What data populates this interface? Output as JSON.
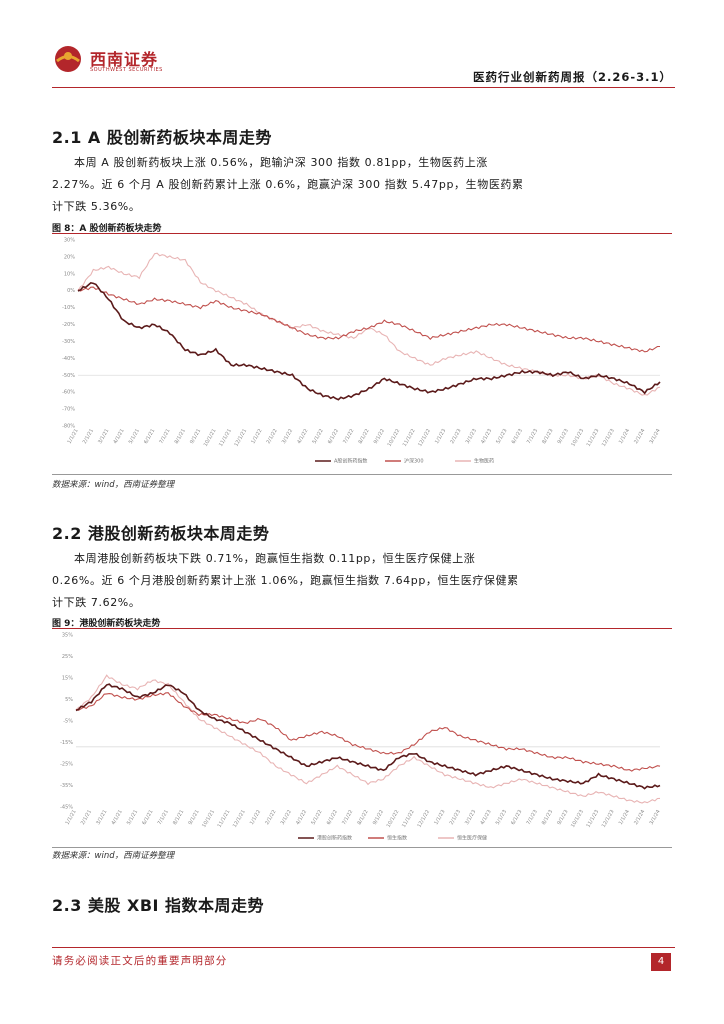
{
  "header": {
    "logo_name": "西南证券",
    "logo_sub": "SOUTHWEST SECURITIES",
    "report_title": "医药行业创新药周报（2.26-3.1）"
  },
  "sections": [
    {
      "title": "2.1 A 股创新药板块本周走势",
      "paragraph": "本周 A 股创新药板块上涨 0.56%，跑输沪深 300 指数 0.81pp，生物医药上涨\n2.27%。近 6 个月 A 股创新药累计上涨 0.6%，跑赢沪深 300 指数 5.47pp，生物医药累\n计下跌 5.36%。",
      "figure_title": "图 8：A 股创新药板块走势",
      "source": "数据来源：wind，西南证券整理"
    },
    {
      "title": "2.2 港股创新药板块本周走势",
      "paragraph": "本周港股创新药板块下跌 0.71%，跑赢恒生指数 0.11pp，恒生医疗保健上涨\n0.26%。近 6 个月港股创新药累计上涨 1.06%，跑赢恒生指数 7.64pp，恒生医疗保健累\n计下跌 7.62%。",
      "figure_title": "图 9：港股创新药板块走势",
      "source": "数据来源：wind，西南证券整理"
    },
    {
      "title": "2.3 美股 XBI 指数本周走势"
    }
  ],
  "footer": {
    "disclaimer": "请务必阅读正文后的重要声明部分",
    "page_number": "4"
  },
  "colors": {
    "brand": "#b3262b",
    "series_dark": "#5b1a1a",
    "series_mid": "#c0504d",
    "series_light": "#e8b4b4"
  },
  "chart_data": [
    {
      "type": "line",
      "ylim": [
        -80,
        30
      ],
      "yticks": [
        "30%",
        "20%",
        "10%",
        "0%",
        "-10%",
        "-20%",
        "-30%",
        "-40%",
        "-50%",
        "-60%",
        "-70%",
        "-80%"
      ],
      "xticks": [
        "1/1/21",
        "2/1/21",
        "3/1/21",
        "4/1/21",
        "5/1/21",
        "6/1/21",
        "7/1/21",
        "8/1/21",
        "9/1/21",
        "10/1/21",
        "11/1/21",
        "12/1/21",
        "1/1/22",
        "2/1/22",
        "3/1/22",
        "4/1/22",
        "5/1/22",
        "6/1/22",
        "7/1/22",
        "8/1/22",
        "9/1/22",
        "10/1/22",
        "11/1/22",
        "12/1/22",
        "1/1/23",
        "2/1/23",
        "3/1/23",
        "4/1/23",
        "5/1/23",
        "6/1/23",
        "7/1/23",
        "8/1/23",
        "9/1/23",
        "10/1/23",
        "11/1/23",
        "12/1/23",
        "1/1/24",
        "2/1/24",
        "3/1/24"
      ],
      "series": [
        {
          "name": "A股创新药指数",
          "color": "#5b1a1a",
          "values": [
            0,
            5,
            -5,
            -18,
            -22,
            -20,
            -25,
            -35,
            -38,
            -35,
            -44,
            -44,
            -46,
            -48,
            -50,
            -58,
            -62,
            -64,
            -62,
            -58,
            -52,
            -55,
            -58,
            -60,
            -58,
            -55,
            -52,
            -52,
            -50,
            -48,
            -48,
            -50,
            -48,
            -52,
            -50,
            -52,
            -55,
            -60,
            -54
          ]
        },
        {
          "name": "沪深300",
          "color": "#c0504d",
          "values": [
            0,
            2,
            -2,
            -5,
            -8,
            -5,
            -6,
            -8,
            -10,
            -6,
            -10,
            -12,
            -14,
            -18,
            -22,
            -26,
            -28,
            -28,
            -24,
            -22,
            -18,
            -20,
            -24,
            -28,
            -26,
            -24,
            -22,
            -20,
            -20,
            -22,
            -24,
            -26,
            -28,
            -28,
            -30,
            -32,
            -34,
            -36,
            -33
          ]
        },
        {
          "name": "生物医药",
          "color": "#e8b4b4",
          "values": [
            0,
            12,
            14,
            10,
            8,
            22,
            20,
            18,
            5,
            0,
            -4,
            -8,
            -14,
            -18,
            -22,
            -20,
            -24,
            -26,
            -28,
            -22,
            -26,
            -36,
            -40,
            -44,
            -40,
            -38,
            -36,
            -40,
            -44,
            -46,
            -48,
            -50,
            -50,
            -52,
            -50,
            -55,
            -58,
            -62,
            -57
          ]
        }
      ]
    },
    {
      "type": "line",
      "ylim": [
        -0.45,
        0.35
      ],
      "yticks": [
        "35%",
        "25%",
        "15%",
        "5%",
        "-5%",
        "-15%",
        "-25%",
        "-35%",
        "-45%"
      ],
      "xticks": [
        "1/1/21",
        "2/1/21",
        "3/1/21",
        "4/1/21",
        "5/1/21",
        "6/1/21",
        "7/1/21",
        "8/1/21",
        "9/1/21",
        "10/1/21",
        "11/1/21",
        "12/1/21",
        "1/1/22",
        "2/1/22",
        "3/1/22",
        "4/1/22",
        "5/1/22",
        "6/1/22",
        "7/1/22",
        "8/1/22",
        "9/1/22",
        "10/1/22",
        "11/1/22",
        "12/1/22",
        "1/1/23",
        "2/1/23",
        "3/1/23",
        "4/1/23",
        "5/1/23",
        "6/1/23",
        "7/1/23",
        "8/1/23",
        "9/1/23",
        "10/1/23",
        "11/1/23",
        "12/1/23",
        "1/1/24",
        "2/1/24",
        "3/1/24"
      ],
      "series": [
        {
          "name": "港股创新药指数",
          "color": "#5b1a1a",
          "values": [
            0,
            0.04,
            0.12,
            0.1,
            0.06,
            0.08,
            0.12,
            0.08,
            0.0,
            -0.04,
            -0.06,
            -0.1,
            -0.14,
            -0.18,
            -0.22,
            -0.26,
            -0.24,
            -0.22,
            -0.24,
            -0.26,
            -0.28,
            -0.22,
            -0.2,
            -0.24,
            -0.26,
            -0.28,
            -0.3,
            -0.28,
            -0.26,
            -0.28,
            -0.3,
            -0.32,
            -0.33,
            -0.34,
            -0.3,
            -0.32,
            -0.34,
            -0.36,
            -0.35
          ]
        },
        {
          "name": "恒生指数",
          "color": "#c0504d",
          "values": [
            0,
            0.02,
            0.08,
            0.06,
            0.05,
            0.07,
            0.08,
            0.02,
            -0.02,
            -0.02,
            -0.04,
            -0.06,
            -0.04,
            -0.08,
            -0.14,
            -0.12,
            -0.1,
            -0.12,
            -0.16,
            -0.18,
            -0.2,
            -0.2,
            -0.16,
            -0.1,
            -0.08,
            -0.12,
            -0.14,
            -0.16,
            -0.18,
            -0.18,
            -0.2,
            -0.22,
            -0.22,
            -0.24,
            -0.25,
            -0.26,
            -0.28,
            -0.27,
            -0.26
          ]
        },
        {
          "name": "恒生医疗保健",
          "color": "#e8b4b4",
          "values": [
            0,
            0.06,
            0.16,
            0.12,
            0.1,
            0.14,
            0.12,
            0.04,
            -0.04,
            -0.08,
            -0.12,
            -0.16,
            -0.2,
            -0.26,
            -0.3,
            -0.34,
            -0.3,
            -0.26,
            -0.3,
            -0.34,
            -0.32,
            -0.26,
            -0.22,
            -0.26,
            -0.3,
            -0.32,
            -0.34,
            -0.36,
            -0.34,
            -0.32,
            -0.34,
            -0.36,
            -0.38,
            -0.4,
            -0.38,
            -0.4,
            -0.42,
            -0.43,
            -0.41
          ]
        }
      ]
    }
  ]
}
